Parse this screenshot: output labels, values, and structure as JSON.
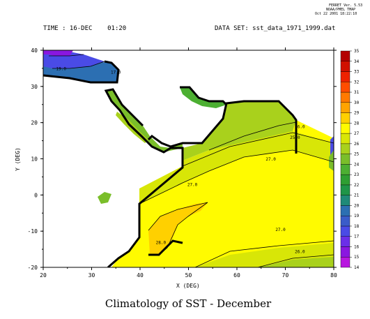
{
  "ferret": {
    "line1": "FERRET Ver. 5.53",
    "line2": "NOAA/PMEL TMAP",
    "line3": "Oct 22 2001 18:22:10"
  },
  "header": {
    "time": "TIME : 16-DEC    01:20",
    "dataset": "DATA SET: sst_data_1971_1999.dat"
  },
  "chart_data": {
    "type": "heatmap",
    "title": "Climatology of SST - December",
    "xlabel": "X (DEG)",
    "ylabel": "Y (DEG)",
    "xlim": [
      20,
      80
    ],
    "ylim": [
      -20,
      40
    ],
    "xticks": [
      20,
      30,
      40,
      50,
      60,
      70,
      80
    ],
    "yticks": [
      -20,
      -10,
      0,
      10,
      20,
      30,
      40
    ],
    "colorbar": {
      "levels": [
        14,
        15,
        16,
        17,
        18,
        19,
        20,
        21,
        22,
        23,
        24,
        25,
        26,
        27,
        28,
        29,
        30,
        31,
        32,
        33,
        34,
        35
      ],
      "colors": [
        "#b817e0",
        "#8a17e0",
        "#6b2fe8",
        "#4a4be6",
        "#3a5cc9",
        "#2c6fb2",
        "#1f8a78",
        "#1f9548",
        "#2e9e32",
        "#4caf32",
        "#7abe2a",
        "#a9d11c",
        "#d8e607",
        "#fffb00",
        "#ffd000",
        "#ffa400",
        "#ff7a00",
        "#ff4d00",
        "#ee2200",
        "#d01000",
        "#b40000"
      ]
    },
    "contour_labels": [
      {
        "value": "26.0",
        "x": 73,
        "y": 18.5
      },
      {
        "value": "25.0",
        "x": 72,
        "y": 15.5
      },
      {
        "value": "27.0",
        "x": 67,
        "y": 9.5
      },
      {
        "value": "27.0",
        "x": 50.8,
        "y": 2.5
      },
      {
        "value": "27.0",
        "x": 69,
        "y": -10
      },
      {
        "value": "26.0",
        "x": 73,
        "y": -16
      },
      {
        "value": "28.0",
        "x": 44.3,
        "y": -13.5
      },
      {
        "value": "19.0",
        "x": 23.7,
        "y": 34.5
      },
      {
        "value": "17.0",
        "x": 35,
        "y": 33.5
      }
    ]
  }
}
